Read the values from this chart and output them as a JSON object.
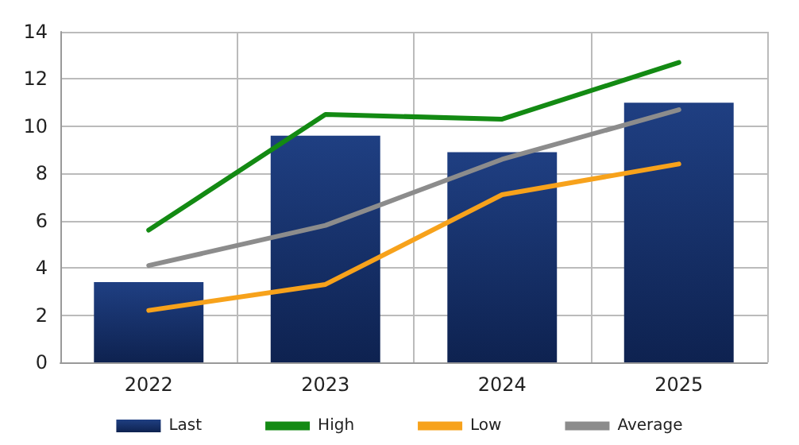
{
  "chart_data": {
    "type": "bar",
    "categories": [
      "2022",
      "2023",
      "2024",
      "2025"
    ],
    "series": [
      {
        "name": "Last",
        "color": "#1f3f82",
        "values": [
          3.4,
          9.6,
          8.9,
          11.0
        ]
      },
      {
        "name": "High",
        "type": "line",
        "color": "#138a13",
        "values": [
          5.6,
          10.5,
          10.3,
          12.7
        ]
      },
      {
        "name": "Low",
        "type": "line",
        "color": "#f7a21b",
        "values": [
          2.2,
          3.3,
          7.1,
          8.4
        ]
      },
      {
        "name": "Average",
        "type": "line",
        "color": "#8c8c8c",
        "values": [
          4.1,
          5.8,
          8.6,
          10.7
        ]
      }
    ],
    "ylim": [
      0,
      14
    ],
    "yticks": [
      0,
      2,
      4,
      6,
      8,
      10,
      12,
      14
    ],
    "grid": true,
    "legend": "bottom",
    "marker": "none",
    "line_style": "solid"
  }
}
